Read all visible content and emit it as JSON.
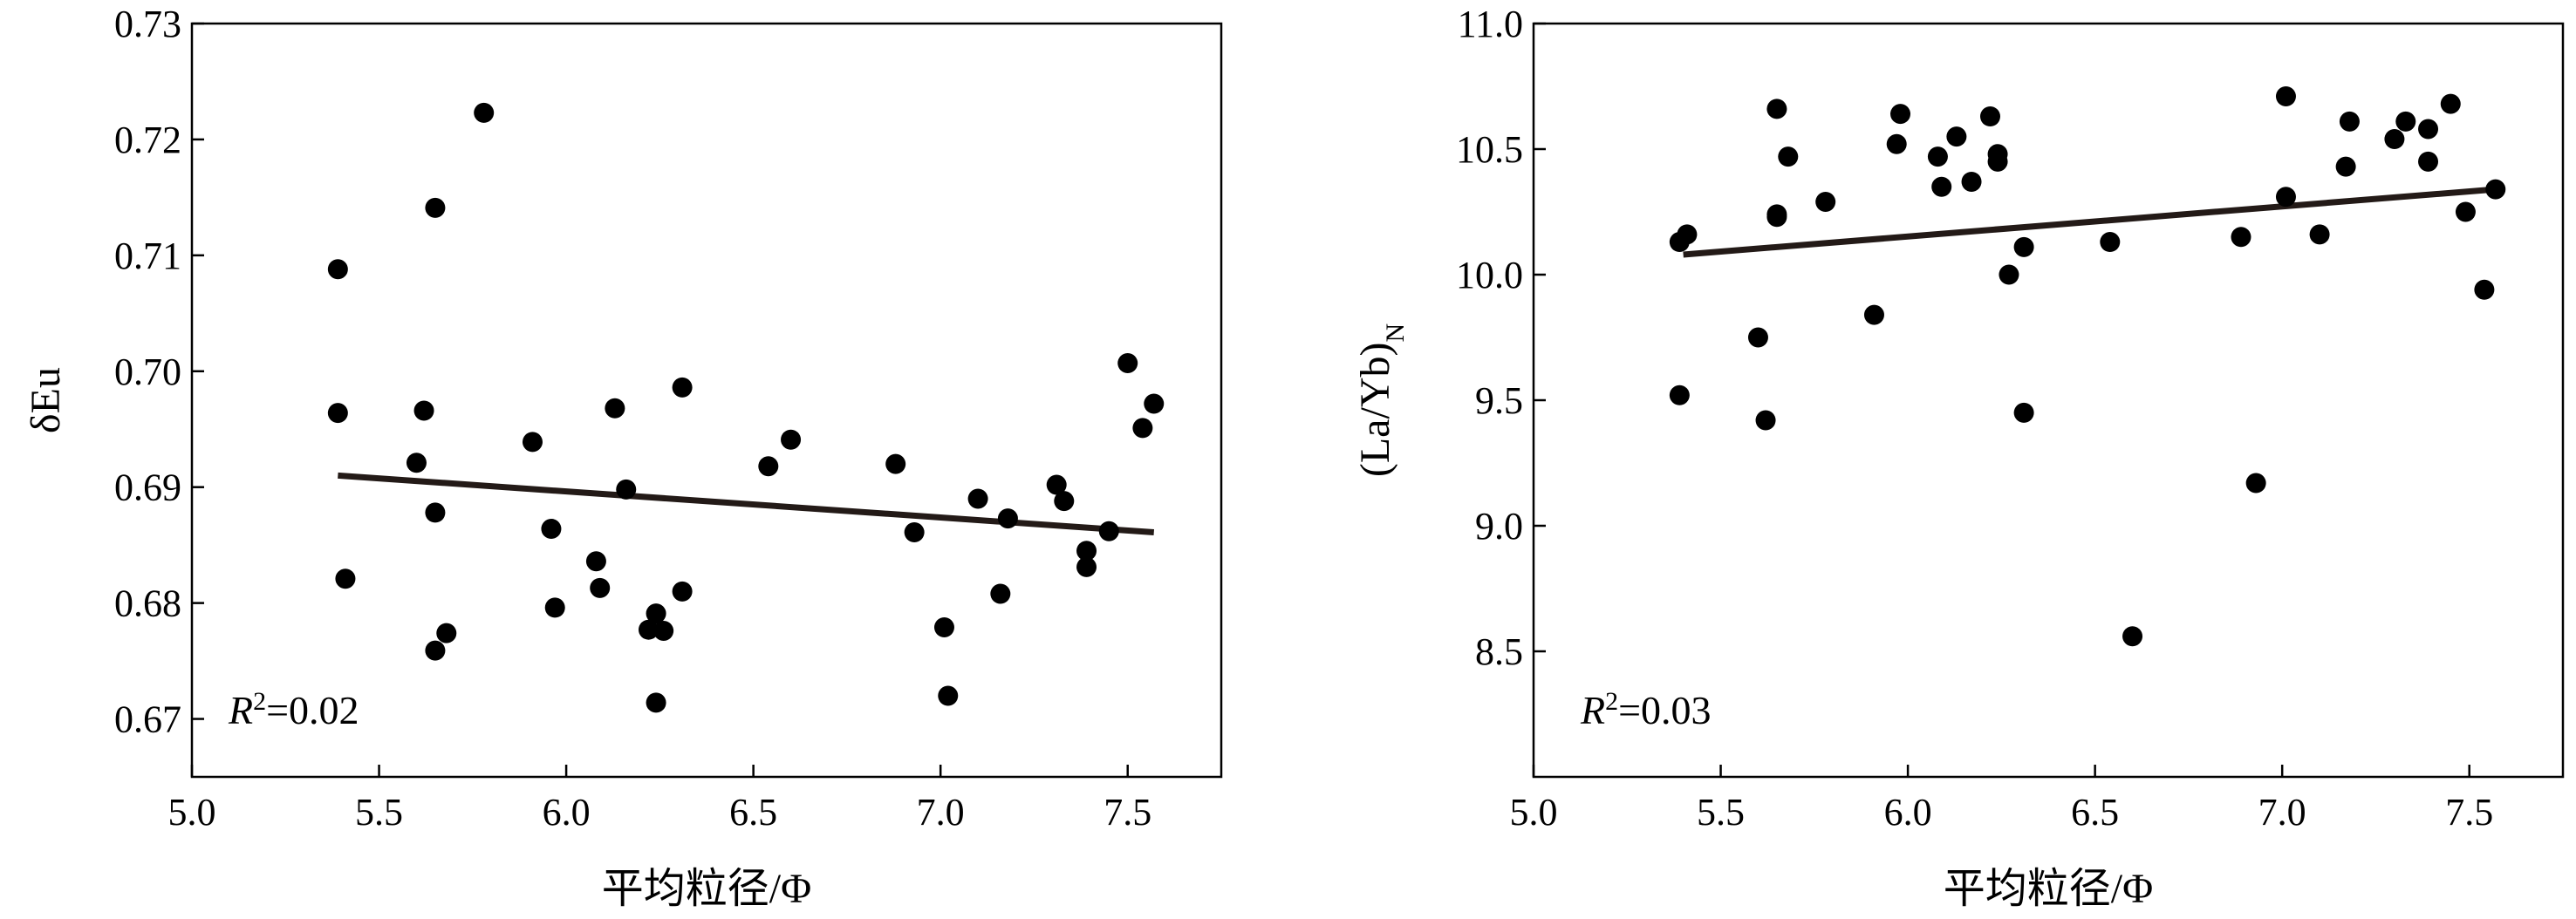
{
  "chart_data": [
    {
      "type": "scatter",
      "xlabel": "平均粒径/Φ",
      "ylabel": "δEu",
      "xlim": [
        5.0,
        7.75
      ],
      "ylim": [
        0.665,
        0.73
      ],
      "xticks": [
        "5.0",
        "5.5",
        "6.0",
        "6.5",
        "7.0",
        "7.5"
      ],
      "yticks": [
        "0.67",
        "0.68",
        "0.69",
        "0.70",
        "0.71",
        "0.72",
        "0.73"
      ],
      "annotation": {
        "r_symbol": "R",
        "r_sup": "2",
        "r_value": "=0.02"
      },
      "trendline": {
        "x": [
          5.39,
          7.57
        ],
        "y": [
          0.691,
          0.6861
        ]
      },
      "points": [
        [
          5.39,
          0.7088
        ],
        [
          5.39,
          0.6964
        ],
        [
          5.41,
          0.6821
        ],
        [
          5.6,
          0.6921
        ],
        [
          5.62,
          0.6966
        ],
        [
          5.65,
          0.7141
        ],
        [
          5.65,
          0.6878
        ],
        [
          5.65,
          0.6759
        ],
        [
          5.68,
          0.6774
        ],
        [
          5.78,
          0.7223
        ],
        [
          5.91,
          0.6939
        ],
        [
          5.96,
          0.6864
        ],
        [
          5.97,
          0.6796
        ],
        [
          6.08,
          0.6836
        ],
        [
          6.09,
          0.6813
        ],
        [
          6.13,
          0.6968
        ],
        [
          6.16,
          0.6898
        ],
        [
          6.22,
          0.6777
        ],
        [
          6.24,
          0.6791
        ],
        [
          6.24,
          0.6714
        ],
        [
          6.26,
          0.6776
        ],
        [
          6.31,
          0.6986
        ],
        [
          6.31,
          0.681
        ],
        [
          6.54,
          0.6918
        ],
        [
          6.6,
          0.6941
        ],
        [
          6.88,
          0.692
        ],
        [
          6.93,
          0.6861
        ],
        [
          7.01,
          0.6779
        ],
        [
          7.02,
          0.672
        ],
        [
          7.1,
          0.689
        ],
        [
          7.16,
          0.6808
        ],
        [
          7.18,
          0.6873
        ],
        [
          7.31,
          0.6902
        ],
        [
          7.33,
          0.6888
        ],
        [
          7.39,
          0.6845
        ],
        [
          7.39,
          0.6831
        ],
        [
          7.45,
          0.6862
        ],
        [
          7.5,
          0.7007
        ],
        [
          7.54,
          0.6951
        ],
        [
          7.57,
          0.6972
        ]
      ]
    },
    {
      "type": "scatter",
      "xlabel": "平均粒径/Φ",
      "ylabel": "(La/Yb)",
      "ylabel_sub": "N",
      "xlim": [
        5.0,
        7.75
      ],
      "ylim": [
        8.0,
        11.0
      ],
      "xticks": [
        "5.0",
        "5.5",
        "6.0",
        "6.5",
        "7.0",
        "7.5"
      ],
      "yticks": [
        "8.5",
        "9.0",
        "9.5",
        "10.0",
        "10.5",
        "11.0"
      ],
      "annotation": {
        "r_symbol": "R",
        "r_sup": "2",
        "r_value": "=0.03"
      },
      "trendline": {
        "x": [
          5.4,
          7.57
        ],
        "y": [
          10.08,
          10.34
        ]
      },
      "points": [
        [
          5.39,
          10.13
        ],
        [
          5.39,
          9.52
        ],
        [
          5.41,
          10.16
        ],
        [
          5.6,
          9.75
        ],
        [
          5.62,
          9.42
        ],
        [
          5.65,
          10.66
        ],
        [
          5.65,
          10.24
        ],
        [
          5.65,
          10.23
        ],
        [
          5.68,
          10.47
        ],
        [
          5.78,
          10.29
        ],
        [
          5.91,
          9.84
        ],
        [
          5.97,
          10.52
        ],
        [
          5.98,
          10.64
        ],
        [
          6.08,
          10.47
        ],
        [
          6.09,
          10.35
        ],
        [
          6.13,
          10.55
        ],
        [
          6.17,
          10.37
        ],
        [
          6.22,
          10.63
        ],
        [
          6.24,
          10.48
        ],
        [
          6.24,
          10.45
        ],
        [
          6.27,
          10.0
        ],
        [
          6.31,
          10.11
        ],
        [
          6.31,
          9.45
        ],
        [
          6.54,
          10.13
        ],
        [
          6.6,
          8.56
        ],
        [
          6.89,
          10.15
        ],
        [
          6.93,
          9.17
        ],
        [
          7.01,
          10.31
        ],
        [
          7.01,
          10.71
        ],
        [
          7.1,
          10.16
        ],
        [
          7.17,
          10.43
        ],
        [
          7.18,
          10.61
        ],
        [
          7.3,
          10.54
        ],
        [
          7.33,
          10.61
        ],
        [
          7.39,
          10.58
        ],
        [
          7.39,
          10.45
        ],
        [
          7.45,
          10.68
        ],
        [
          7.49,
          10.25
        ],
        [
          7.54,
          9.94
        ],
        [
          7.57,
          10.34
        ]
      ]
    }
  ]
}
